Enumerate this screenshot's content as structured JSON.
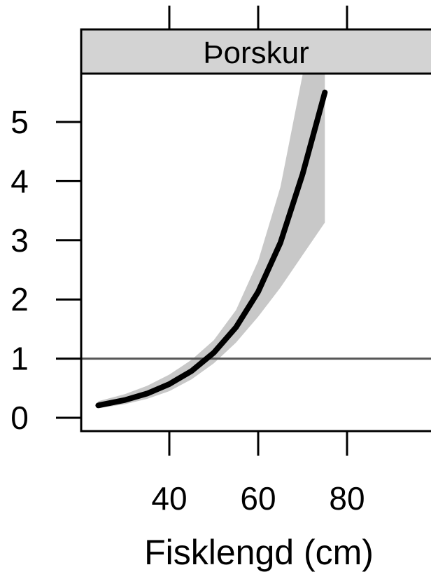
{
  "chart_data": {
    "type": "line",
    "panel_title": "Þorskur",
    "xlabel": "Fisklengd (cm)",
    "ylabel": "",
    "xlim": [
      20,
      100
    ],
    "ylim": [
      -0.2,
      6.0
    ],
    "x_ticks": [
      40,
      60,
      80
    ],
    "y_ticks": [
      0,
      1,
      2,
      3,
      4,
      5
    ],
    "grid": false,
    "reference_line": {
      "y": 1,
      "color": "#555555"
    },
    "series": [
      {
        "x": [
          24,
          30,
          35,
          40,
          45,
          50,
          55,
          60,
          65,
          70,
          75
        ],
        "values": [
          0.21,
          0.3,
          0.41,
          0.57,
          0.79,
          1.1,
          1.53,
          2.13,
          2.96,
          4.12,
          5.5
        ],
        "lower": [
          0.16,
          0.23,
          0.32,
          0.45,
          0.65,
          0.92,
          1.27,
          1.71,
          2.2,
          2.75,
          3.3
        ],
        "upper": [
          0.28,
          0.4,
          0.54,
          0.73,
          0.98,
          1.31,
          1.82,
          2.65,
          3.9,
          5.8,
          6.0
        ],
        "line_color": "#000000",
        "band_color": "#c8c8c8"
      }
    ]
  }
}
